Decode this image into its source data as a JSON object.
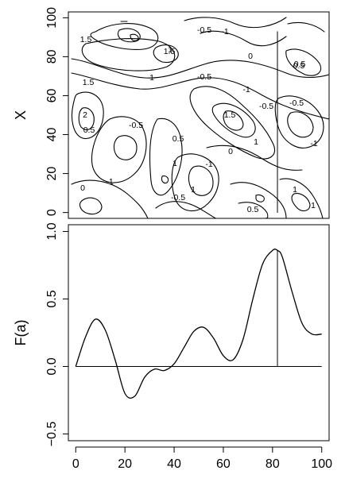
{
  "chart_data": [
    {
      "type": "contour",
      "title": "",
      "xlabel": "",
      "ylabel": "X",
      "xlim": [
        -3,
        103
      ],
      "ylim": [
        -3,
        103
      ],
      "yticks": [
        0,
        20,
        40,
        60,
        80,
        100
      ],
      "contour_level_labels": [
        "1.5",
        "-0.5",
        "-1",
        "1",
        "1.5",
        "0",
        "0.5",
        "1.5",
        "1",
        "-0.5",
        "-1",
        "-0.5",
        "-0.5",
        "2",
        "-0.5",
        "1.5",
        "0.5",
        "1",
        "0.5",
        "-1",
        "1",
        "0",
        "-1",
        "0",
        "1",
        "-1",
        "-0.5",
        "1",
        "0.5",
        "1",
        "0.5"
      ],
      "vertical_line_x": 82
    },
    {
      "type": "line",
      "title": "",
      "xlabel": "",
      "ylabel": "F(a)",
      "xlim": [
        -3,
        103
      ],
      "ylim": [
        -0.55,
        1.05
      ],
      "xticks": [
        0,
        20,
        40,
        60,
        80,
        100
      ],
      "yticks": [
        -0.5,
        0.0,
        0.5,
        1.0
      ],
      "ytick_labels": [
        "−0.5",
        "0.0",
        "0.5",
        "1.0"
      ],
      "series": [
        {
          "x": [
            0,
            4,
            8,
            12,
            16,
            20,
            24,
            28,
            32,
            36,
            40,
            44,
            48,
            52,
            56,
            60,
            64,
            68,
            72,
            76,
            80,
            82,
            84,
            88,
            92,
            96,
            100
          ],
          "values": [
            0.0,
            0.22,
            0.35,
            0.27,
            0.05,
            -0.2,
            -0.22,
            -0.08,
            -0.02,
            -0.03,
            0.02,
            0.14,
            0.26,
            0.29,
            0.21,
            0.08,
            0.05,
            0.2,
            0.5,
            0.76,
            0.86,
            0.86,
            0.81,
            0.55,
            0.32,
            0.24,
            0.24
          ]
        }
      ],
      "baseline": 0,
      "vertical_segment": {
        "x": 82,
        "from": 0,
        "to": 0.86
      }
    }
  ]
}
